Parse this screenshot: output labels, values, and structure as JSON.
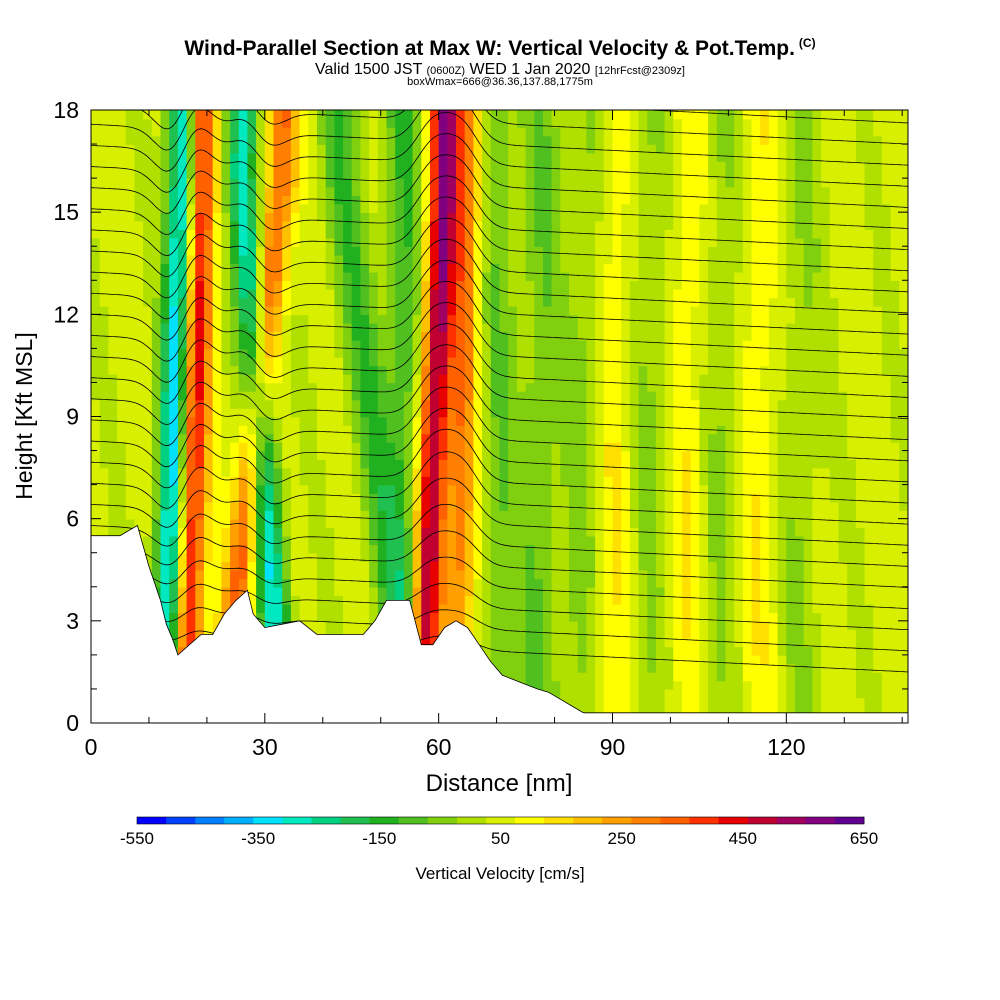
{
  "header": {
    "title": "Wind-Parallel Section at Max W: Vertical Velocity & Pot.Temp.",
    "copyright": "(C)",
    "valid_prefix": "Valid 1500 JST",
    "valid_utc": "(0600Z)",
    "valid_date": "WED 1 Jan 2020",
    "forecast": "[12hrFcst@2309z]",
    "box_info": "boxWmax=666@36.36,137.88,1775m"
  },
  "chart_data": {
    "type": "heatmap",
    "title": "Wind-Parallel Section at Max W: Vertical Velocity & Pot.Temp.",
    "xlabel": "Distance [nm]",
    "ylabel": "Height [Kft MSL]",
    "xlim": [
      0,
      141
    ],
    "ylim": [
      0,
      18
    ],
    "x_ticks": [
      0,
      30,
      60,
      90,
      120
    ],
    "y_ticks": [
      0,
      3,
      6,
      9,
      12,
      15,
      18
    ],
    "colorbar": {
      "label": "Vertical Velocity [cm/s]",
      "tick_labels": [
        "-550",
        "-350",
        "-150",
        "50",
        "250",
        "450",
        "650"
      ],
      "min": -550,
      "max": 650,
      "colors": [
        "#0000ff",
        "#0040ff",
        "#0080ff",
        "#00b0ff",
        "#00e0ff",
        "#00e8c0",
        "#00d080",
        "#20c050",
        "#20b020",
        "#50c020",
        "#80d010",
        "#b0e000",
        "#d8f000",
        "#ffff00",
        "#ffe000",
        "#ffc000",
        "#ffa000",
        "#ff8000",
        "#ff6000",
        "#ff3000",
        "#e80000",
        "#c00030",
        "#a00060",
        "#800080",
        "#600090"
      ]
    },
    "terrain_kft": [
      [
        0,
        5.5
      ],
      [
        5,
        5.5
      ],
      [
        8,
        5.8
      ],
      [
        10,
        4.6
      ],
      [
        12,
        3.6
      ],
      [
        13,
        2.9
      ],
      [
        14,
        2.5
      ],
      [
        15,
        2.0
      ],
      [
        17,
        2.3
      ],
      [
        19,
        2.6
      ],
      [
        21,
        2.6
      ],
      [
        23,
        3.2
      ],
      [
        25,
        3.6
      ],
      [
        27,
        3.9
      ],
      [
        28,
        3.2
      ],
      [
        30,
        2.8
      ],
      [
        33,
        2.9
      ],
      [
        36,
        3.0
      ],
      [
        39,
        2.6
      ],
      [
        44,
        2.6
      ],
      [
        47,
        2.6
      ],
      [
        49,
        3.0
      ],
      [
        51,
        3.6
      ],
      [
        55,
        3.6
      ],
      [
        57,
        2.3
      ],
      [
        59,
        2.3
      ],
      [
        61,
        2.8
      ],
      [
        63,
        3.0
      ],
      [
        65,
        2.8
      ],
      [
        67,
        2.3
      ],
      [
        69,
        1.8
      ],
      [
        71,
        1.4
      ],
      [
        74,
        1.2
      ],
      [
        77,
        1.0
      ],
      [
        79,
        0.9
      ],
      [
        81,
        0.7
      ],
      [
        83,
        0.5
      ],
      [
        85,
        0.3
      ],
      [
        141,
        0.3
      ]
    ],
    "series_features": [
      {
        "kind": "downdraft",
        "x_top": 16,
        "x_bottom": 13,
        "w": -450
      },
      {
        "kind": "updraft",
        "x_top": 19,
        "x_bottom": 16,
        "w": 450
      },
      {
        "kind": "downdraft",
        "x_top": 26,
        "x_bottom": 33,
        "w": -350
      },
      {
        "kind": "updraft",
        "x_top": 33,
        "x_bottom": 23,
        "w": 300
      },
      {
        "kind": "downdraft",
        "x_top": 43,
        "x_bottom": 55,
        "w": -150
      },
      {
        "kind": "updraft",
        "x_top": 61,
        "x_bottom": 57,
        "w": 500
      },
      {
        "kind": "updraft",
        "x_top": 65,
        "x_bottom": 63,
        "w": 250
      },
      {
        "kind": "downdraft",
        "x_top": 54,
        "x_bottom": 55,
        "w": -150
      },
      {
        "kind": "downdraft",
        "x_top": 70,
        "x_bottom": 71,
        "w": -100
      },
      {
        "kind": "downdraft",
        "x_top": 78,
        "x_bottom": 77,
        "w": -100
      },
      {
        "kind": "downdraft",
        "x_top": 86,
        "x_bottom": 84,
        "w": -80
      },
      {
        "kind": "downdraft",
        "x_top": 97,
        "x_bottom": 96,
        "w": -70
      },
      {
        "kind": "downdraft",
        "x_top": 109,
        "x_bottom": 108,
        "w": -70
      },
      {
        "kind": "downdraft",
        "x_top": 123,
        "x_bottom": 122,
        "w": -60
      },
      {
        "kind": "updraft",
        "x_top": 90,
        "x_bottom": 90,
        "w": 80
      },
      {
        "kind": "updraft",
        "x_top": 103,
        "x_bottom": 103,
        "w": 80
      },
      {
        "kind": "updraft",
        "x_top": 115,
        "x_bottom": 115,
        "w": 70
      }
    ]
  }
}
